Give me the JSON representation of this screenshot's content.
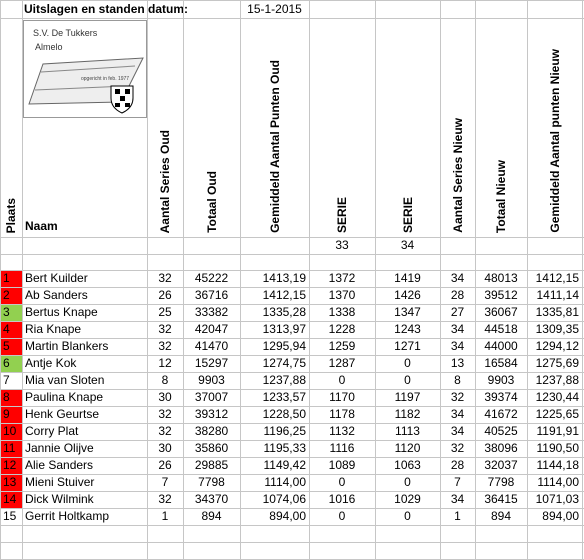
{
  "header": {
    "title": "Uitslagen en standen datum:",
    "date": "15-1-2015"
  },
  "logo": {
    "club": "S.V. De Tukkers",
    "city": "Almelo",
    "founded": "opgericht in feb. 1977"
  },
  "table": {
    "columns": [
      "Plaats",
      "Naam",
      "Aantal Series Oud",
      "Totaal Oud",
      "Gemiddeld Aantal Punten Oud",
      "SERIE",
      "SERIE",
      "Aantal Series Nieuw",
      "Totaal Nieuw",
      "Gemiddeld Aantal punten Nieuw"
    ],
    "serie_numbers": [
      "33",
      "34"
    ],
    "rank_colors": [
      "#ff0000",
      "#ff0000",
      "#92d050",
      "#ff0000",
      "#ff0000",
      "#92d050",
      "#ffffff",
      "#ff0000",
      "#ff0000",
      "#ff0000",
      "#ff0000",
      "#ff0000",
      "#ff0000",
      "#ff0000",
      "#ffffff"
    ],
    "rows": [
      [
        "1",
        "Bert Kuilder",
        "32",
        "45222",
        "1413,19",
        "1372",
        "1419",
        "34",
        "48013",
        "1412,15"
      ],
      [
        "2",
        "Ab Sanders",
        "26",
        "36716",
        "1412,15",
        "1370",
        "1426",
        "28",
        "39512",
        "1411,14"
      ],
      [
        "3",
        "Bertus Knape",
        "25",
        "33382",
        "1335,28",
        "1338",
        "1347",
        "27",
        "36067",
        "1335,81"
      ],
      [
        "4",
        "Ria Knape",
        "32",
        "42047",
        "1313,97",
        "1228",
        "1243",
        "34",
        "44518",
        "1309,35"
      ],
      [
        "5",
        "Martin Blankers",
        "32",
        "41470",
        "1295,94",
        "1259",
        "1271",
        "34",
        "44000",
        "1294,12"
      ],
      [
        "6",
        "Antje Kok",
        "12",
        "15297",
        "1274,75",
        "1287",
        "0",
        "13",
        "16584",
        "1275,69"
      ],
      [
        "7",
        "Mia van Sloten",
        "8",
        "9903",
        "1237,88",
        "0",
        "0",
        "8",
        "9903",
        "1237,88"
      ],
      [
        "8",
        "Paulina Knape",
        "30",
        "37007",
        "1233,57",
        "1170",
        "1197",
        "32",
        "39374",
        "1230,44"
      ],
      [
        "9",
        "Henk Geurtse",
        "32",
        "39312",
        "1228,50",
        "1178",
        "1182",
        "34",
        "41672",
        "1225,65"
      ],
      [
        "10",
        "Corry Plat",
        "32",
        "38280",
        "1196,25",
        "1132",
        "1113",
        "34",
        "40525",
        "1191,91"
      ],
      [
        "11",
        "Jannie Olijve",
        "30",
        "35860",
        "1195,33",
        "1116",
        "1120",
        "32",
        "38096",
        "1190,50"
      ],
      [
        "12",
        "Alie Sanders",
        "26",
        "29885",
        "1149,42",
        "1089",
        "1063",
        "28",
        "32037",
        "1144,18"
      ],
      [
        "13",
        "Mieni Stuiver",
        "7",
        "7798",
        "1114,00",
        "0",
        "0",
        "7",
        "7798",
        "1114,00"
      ],
      [
        "14",
        "Dick Wilmink",
        "32",
        "34370",
        "1074,06",
        "1016",
        "1029",
        "34",
        "36415",
        "1071,03"
      ],
      [
        "15",
        "Gerrit Holtkamp",
        "1",
        "894",
        "894,00",
        "0",
        "0",
        "1",
        "894",
        "894,00"
      ]
    ]
  }
}
